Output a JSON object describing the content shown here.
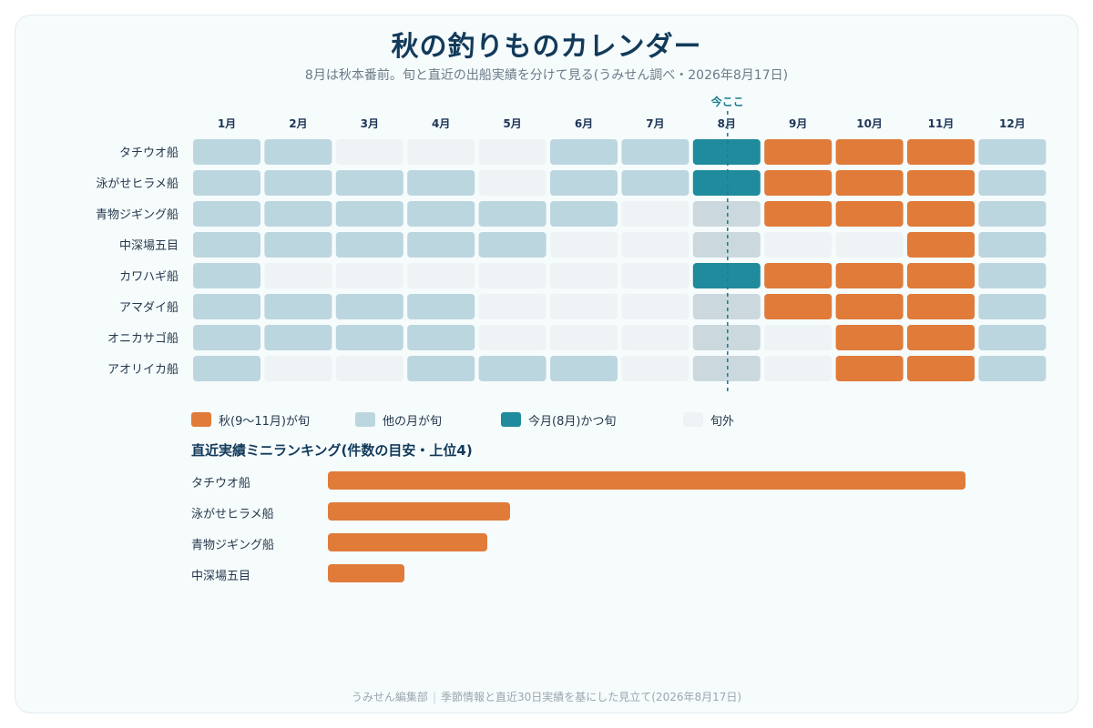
{
  "header": {
    "title": "秋の釣りものカレンダー",
    "subtitle": "8月は秋本番前。旬と直近の出船実績を分けて見る(うみせん調べ・2026年8月17日)"
  },
  "colors": {
    "autumn_peak": "#e07b39",
    "other_peak": "#bcd6df",
    "current_peak": "#1f8b9c",
    "off": "#eef3f5",
    "current_off": "#cbd9de",
    "today_line": "#1f7f8e"
  },
  "chart_data": [
    {
      "type": "heatmap",
      "title": "秋の釣りものカレンダー",
      "subtitle": "8月は秋本番前。旬と直近の出船実績を分けて見る(うみせん調べ・2026年8月17日)",
      "months": [
        "1月",
        "2月",
        "3月",
        "4月",
        "5月",
        "6月",
        "7月",
        "8月",
        "9月",
        "10月",
        "11月",
        "12月"
      ],
      "current_month_index": 7,
      "current_marker_label": "今ここ",
      "categories": {
        "autumn": "秋(9〜11月)が旬",
        "other": "他の月が旬",
        "current": "今月(8月)かつ旬",
        "off": "旬外"
      },
      "rows": [
        {
          "name": "タチウオ船",
          "cells": [
            "other",
            "other",
            "off",
            "off",
            "off",
            "other",
            "other",
            "current",
            "autumn",
            "autumn",
            "autumn",
            "other"
          ]
        },
        {
          "name": "泳がせヒラメ船",
          "cells": [
            "other",
            "other",
            "other",
            "other",
            "off",
            "other",
            "other",
            "current",
            "autumn",
            "autumn",
            "autumn",
            "other"
          ]
        },
        {
          "name": "青物ジギング船",
          "cells": [
            "other",
            "other",
            "other",
            "other",
            "other",
            "other",
            "off",
            "off",
            "autumn",
            "autumn",
            "autumn",
            "other"
          ]
        },
        {
          "name": "中深場五目",
          "cells": [
            "other",
            "other",
            "other",
            "other",
            "other",
            "off",
            "off",
            "off",
            "off",
            "off",
            "autumn",
            "other"
          ]
        },
        {
          "name": "カワハギ船",
          "cells": [
            "other",
            "off",
            "off",
            "off",
            "off",
            "off",
            "off",
            "current",
            "autumn",
            "autumn",
            "autumn",
            "other"
          ]
        },
        {
          "name": "アマダイ船",
          "cells": [
            "other",
            "other",
            "other",
            "other",
            "off",
            "off",
            "off",
            "off",
            "autumn",
            "autumn",
            "autumn",
            "other"
          ]
        },
        {
          "name": "オニカサゴ船",
          "cells": [
            "other",
            "other",
            "other",
            "other",
            "off",
            "off",
            "off",
            "off",
            "off",
            "autumn",
            "autumn",
            "other"
          ]
        },
        {
          "name": "アオリイカ船",
          "cells": [
            "other",
            "off",
            "off",
            "other",
            "other",
            "other",
            "off",
            "off",
            "off",
            "autumn",
            "autumn",
            "other"
          ]
        }
      ],
      "legend": [
        "autumn",
        "other",
        "current",
        "off"
      ]
    },
    {
      "type": "bar",
      "orientation": "horizontal",
      "title": "直近実績ミニランキング(件数の目安・上位4)",
      "categories": [
        "タチウオ船",
        "泳がせヒラメ船",
        "青物ジギング船",
        "中深場五目"
      ],
      "values": [
        100,
        28.5,
        25,
        12
      ],
      "xlim": [
        0,
        100
      ]
    }
  ],
  "footer": {
    "publisher": "うみせん編集部",
    "note": "季節情報と直近30日実績を基にした見立て(2026年8月17日)"
  }
}
